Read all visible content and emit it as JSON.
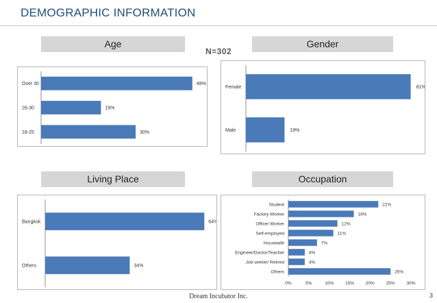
{
  "slide": {
    "title": "DEMOGRAPHIC INFORMATION",
    "sample_size": "N=302",
    "footer": "Dream Incubator Inc.",
    "page_number": "3"
  },
  "colors": {
    "bar": "#4a7ab8",
    "header_bg": "#d6d6d6",
    "title": "#1f4e79"
  },
  "sections": {
    "age": "Age",
    "gender": "Gender",
    "living_place": "Living Place",
    "occupation": "Occupation"
  },
  "chart_data": [
    {
      "id": "age",
      "type": "bar",
      "orientation": "horizontal",
      "title": "Age",
      "categories": [
        "Over 30",
        "26-30",
        "18-25"
      ],
      "values": [
        48,
        19,
        30
      ],
      "labels": [
        "48%",
        "19%",
        "30%"
      ],
      "xlim": [
        0,
        100
      ],
      "grid": false,
      "legend": "none"
    },
    {
      "id": "gender",
      "type": "bar",
      "orientation": "horizontal",
      "title": "Gender",
      "categories": [
        "Female",
        "Male"
      ],
      "values": [
        81,
        19
      ],
      "labels": [
        "81%",
        "19%"
      ],
      "xlim": [
        0,
        100
      ],
      "grid": false,
      "legend": "none"
    },
    {
      "id": "living_place",
      "type": "bar",
      "orientation": "horizontal",
      "title": "Living Place",
      "categories": [
        "Bangkok",
        "Others"
      ],
      "values": [
        64,
        34
      ],
      "labels": [
        "64%",
        "34%"
      ],
      "xlim": [
        0,
        100
      ],
      "grid": false,
      "legend": "none"
    },
    {
      "id": "occupation",
      "type": "bar",
      "orientation": "horizontal",
      "title": "Occupation",
      "categories": [
        "Student",
        "Factory Worker",
        "Officer Worker",
        "Self-employed",
        "Housewife",
        "Engineer/Doctor/Teacher",
        "Job seeker/ Retired",
        "Others"
      ],
      "values": [
        22,
        16,
        12,
        11,
        7,
        4,
        4,
        25
      ],
      "labels": [
        "22%",
        "16%",
        "12%",
        "11%",
        "7%",
        "4%",
        "4%",
        "25%"
      ],
      "xlim": [
        0,
        30
      ],
      "xticks": [
        "0%",
        "5%",
        "10%",
        "15%",
        "20%",
        "25%",
        "30%"
      ],
      "grid": false,
      "legend": "none"
    }
  ]
}
